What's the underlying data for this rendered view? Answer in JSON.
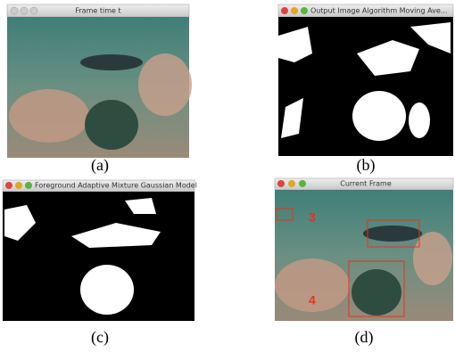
{
  "panels": [
    {
      "title": "Frame time t",
      "caption": "(a)"
    },
    {
      "title": "Output Image Algorithm Moving Ave...",
      "caption": "(b)"
    },
    {
      "title": "Foreground Adaptive Mixture Gaussian Model",
      "caption": "(c)"
    },
    {
      "title": "Current Frame",
      "caption": "(d)",
      "labels": [
        "3",
        "4"
      ]
    }
  ]
}
